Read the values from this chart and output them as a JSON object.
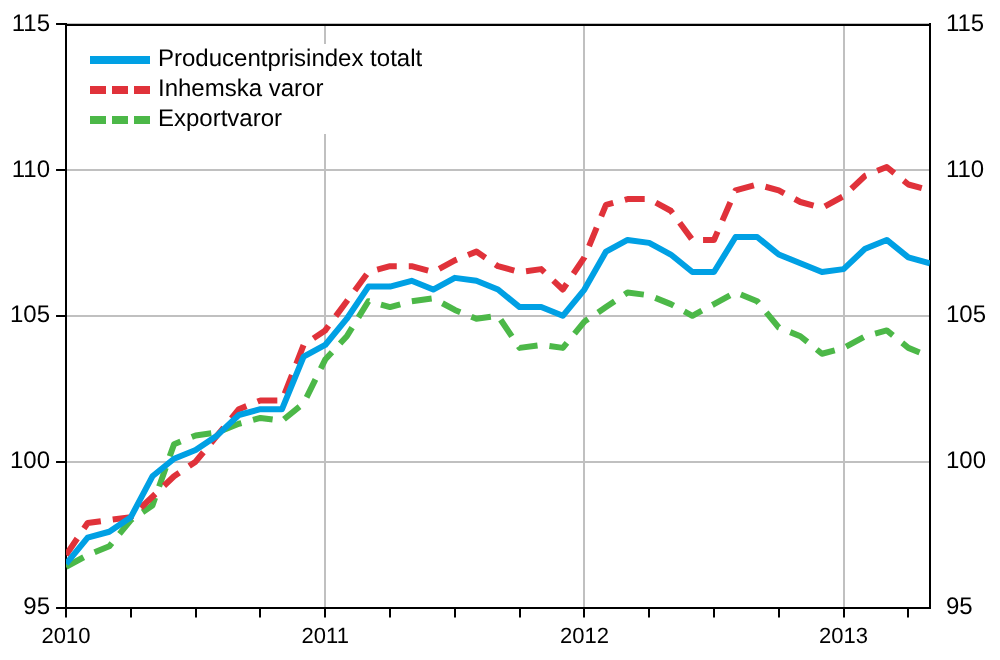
{
  "chart_data": {
    "type": "line",
    "x": [
      "2010-01",
      "2010-02",
      "2010-03",
      "2010-04",
      "2010-05",
      "2010-06",
      "2010-07",
      "2010-08",
      "2010-09",
      "2010-10",
      "2010-11",
      "2010-12",
      "2011-01",
      "2011-02",
      "2011-03",
      "2011-04",
      "2011-05",
      "2011-06",
      "2011-07",
      "2011-08",
      "2011-09",
      "2011-10",
      "2011-11",
      "2011-12",
      "2012-01",
      "2012-02",
      "2012-03",
      "2012-04",
      "2012-05",
      "2012-06",
      "2012-07",
      "2012-08",
      "2012-09",
      "2012-10",
      "2012-11",
      "2012-12",
      "2013-01",
      "2013-02",
      "2013-03",
      "2013-04",
      "2013-05"
    ],
    "series": [
      {
        "name": "Producentprisindex totalt",
        "color": "#00a0e4",
        "line_style": "solid",
        "values": [
          96.5,
          97.4,
          97.6,
          98.1,
          99.5,
          100.1,
          100.4,
          100.9,
          101.6,
          101.8,
          101.8,
          103.6,
          104.0,
          104.9,
          106.0,
          106.0,
          106.2,
          105.9,
          106.3,
          106.2,
          105.9,
          105.3,
          105.3,
          105.0,
          105.9,
          107.2,
          107.6,
          107.5,
          107.1,
          106.5,
          106.5,
          107.7,
          107.7,
          107.1,
          106.8,
          106.5,
          106.6,
          107.3,
          107.6,
          107.0,
          106.8
        ]
      },
      {
        "name": "Inhemska varor",
        "color": "#e0323a",
        "line_style": "dashed",
        "values": [
          96.8,
          97.9,
          98.0,
          98.1,
          98.8,
          99.5,
          100.0,
          100.9,
          101.8,
          102.1,
          102.1,
          104.0,
          104.5,
          105.5,
          106.5,
          106.7,
          106.7,
          106.5,
          106.9,
          107.2,
          106.7,
          106.5,
          106.6,
          105.9,
          107.0,
          108.8,
          109.0,
          109.0,
          108.6,
          107.6,
          107.6,
          109.3,
          109.5,
          109.3,
          108.9,
          108.7,
          109.1,
          109.8,
          110.1,
          109.5,
          109.3
        ]
      },
      {
        "name": "Exportvaror",
        "color": "#4cb848",
        "line_style": "dashed",
        "values": [
          96.4,
          96.8,
          97.1,
          98.0,
          98.5,
          100.6,
          100.9,
          101.0,
          101.3,
          101.5,
          101.4,
          102.0,
          103.5,
          104.3,
          105.5,
          105.3,
          105.5,
          105.6,
          105.2,
          104.9,
          105.0,
          103.9,
          104.0,
          103.9,
          104.8,
          105.3,
          105.8,
          105.7,
          105.4,
          105.0,
          105.4,
          105.8,
          105.5,
          104.6,
          104.3,
          103.7,
          103.9,
          104.3,
          104.5,
          103.9,
          103.6
        ]
      }
    ],
    "xlim": [
      "2010-01",
      "2013-05"
    ],
    "xticks": [
      {
        "value": "2010-01",
        "label": "2010"
      },
      {
        "value": "2010-04",
        "label": null
      },
      {
        "value": "2010-07",
        "label": null
      },
      {
        "value": "2010-10",
        "label": null
      },
      {
        "value": "2011-01",
        "label": "2011"
      },
      {
        "value": "2011-04",
        "label": null
      },
      {
        "value": "2011-07",
        "label": null
      },
      {
        "value": "2011-10",
        "label": null
      },
      {
        "value": "2012-01",
        "label": "2012"
      },
      {
        "value": "2012-04",
        "label": null
      },
      {
        "value": "2012-07",
        "label": null
      },
      {
        "value": "2012-10",
        "label": null
      },
      {
        "value": "2013-01",
        "label": "2013"
      },
      {
        "value": "2013-04",
        "label": null
      }
    ],
    "ylim": [
      95,
      115
    ],
    "yticks": [
      95,
      100,
      105,
      110,
      115
    ],
    "y2lim": [
      95,
      115
    ],
    "y2ticks": [
      95,
      100,
      105,
      110,
      115
    ],
    "grid": true,
    "legend": "top left"
  }
}
